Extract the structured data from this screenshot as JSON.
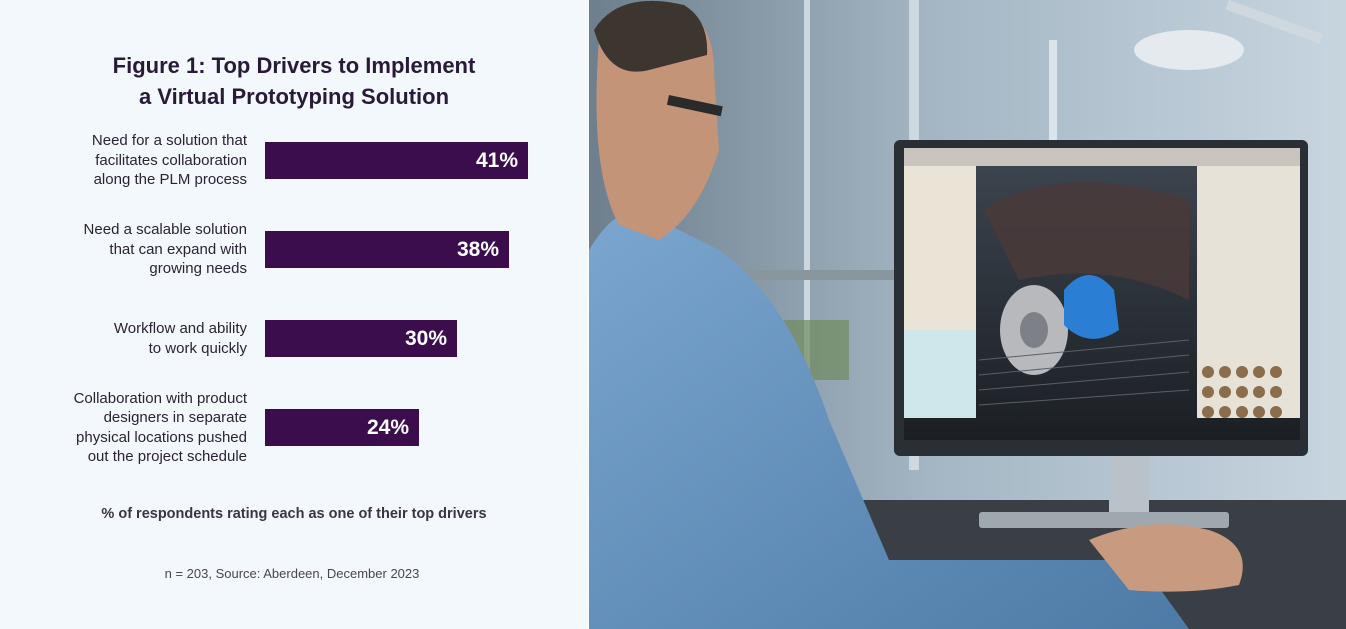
{
  "figure": {
    "title_line1": "Figure 1: Top Drivers to Implement",
    "title_line2": "a Virtual Prototyping Solution",
    "caption": "% of respondents rating each as one of their top drivers",
    "source": "n = 203, Source: Aberdeen, December 2023"
  },
  "chart_data": {
    "type": "bar",
    "orientation": "horizontal",
    "categories": [
      [
        "Need for a solution that",
        "facilitates collaboration",
        "along the PLM process"
      ],
      [
        "Need a scalable solution",
        "that can expand with",
        "growing needs"
      ],
      [
        "Workflow and ability",
        "to work quickly"
      ],
      [
        "Collaboration with product",
        "designers in separate",
        "physical locations pushed",
        "out the project schedule"
      ]
    ],
    "values": [
      41,
      38,
      30,
      24
    ],
    "value_labels": [
      "41%",
      "38%",
      "30%",
      "24%"
    ],
    "unit": "%",
    "bar_color": "#3c0d4c",
    "axis": "none",
    "grid": false,
    "legend": "none"
  },
  "photo": {
    "subject": "engineer at desk viewing 3D wheel assembly model in CAD software",
    "colors": {
      "shirt": "#5f8fbc",
      "background": "#a9bccc",
      "screen_frame": "#2a2f36"
    }
  }
}
